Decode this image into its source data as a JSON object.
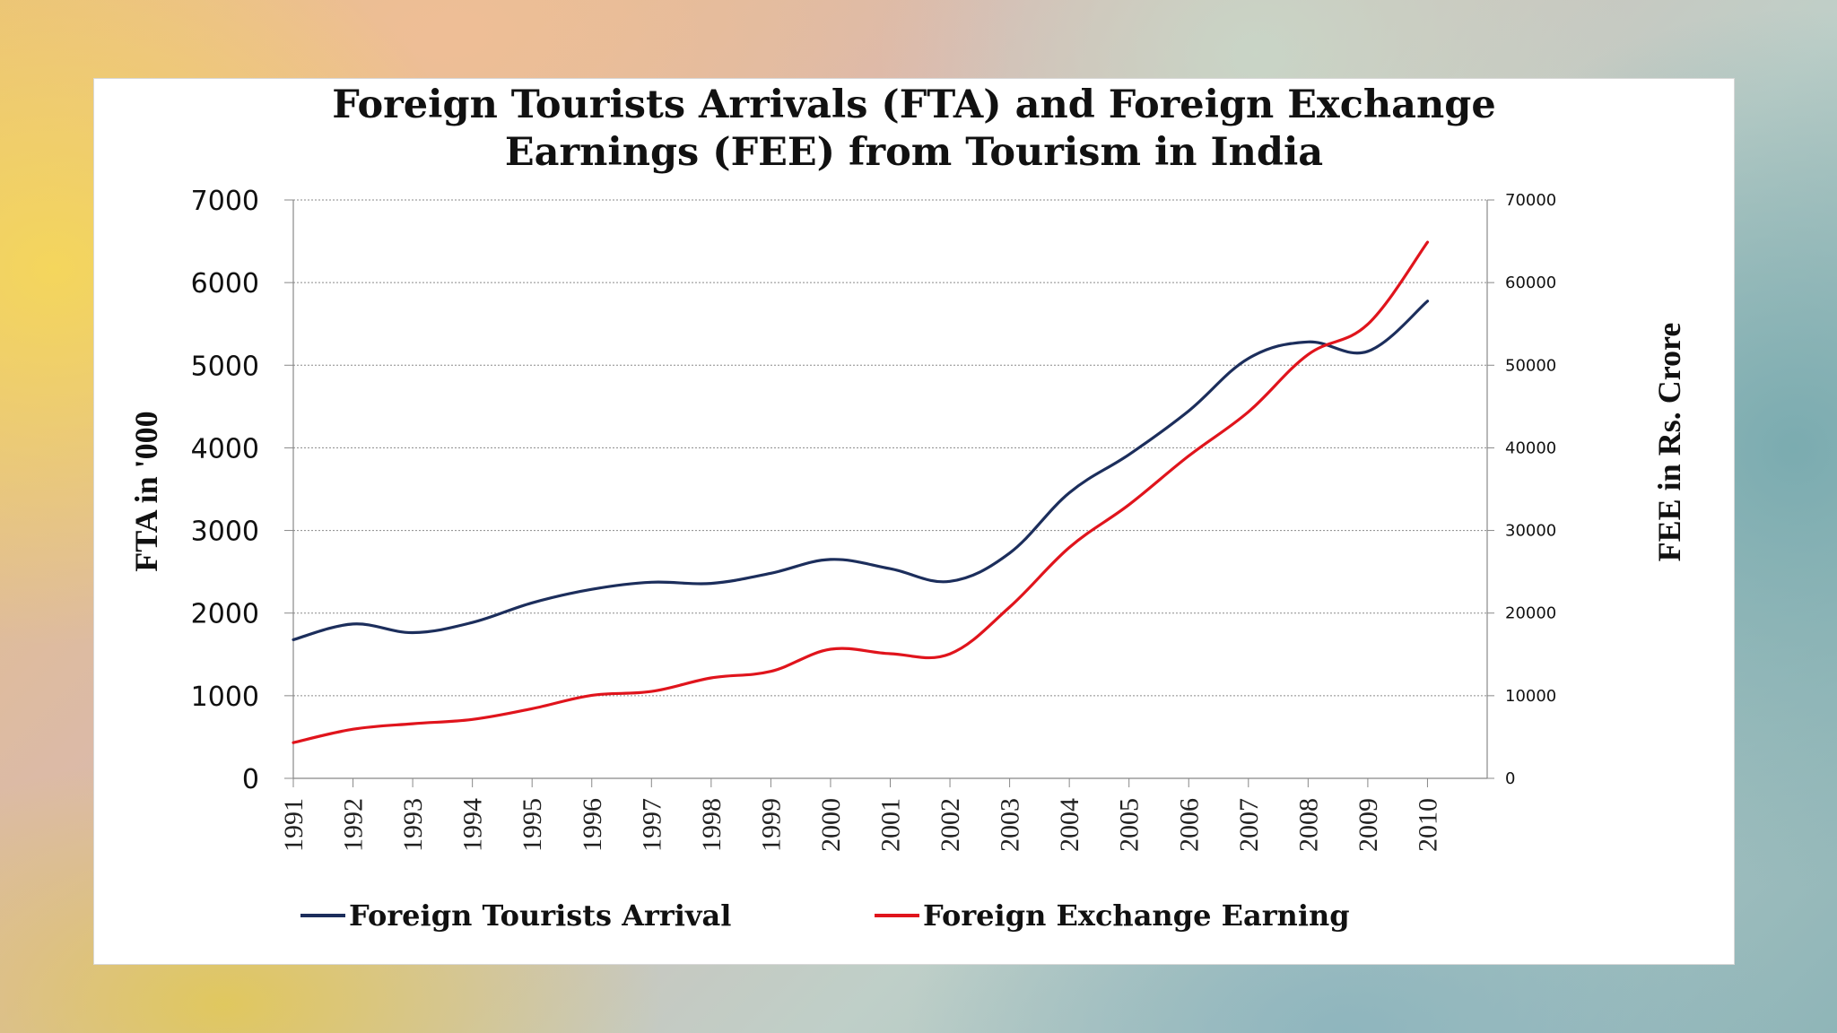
{
  "chart_data": {
    "type": "line",
    "title_line1": "Foreign Tourists Arrivals (FTA) and Foreign Exchange",
    "title_line2": "Earnings (FEE) from Tourism in India",
    "ylabel_left": "FTA in '000",
    "ylabel_right": "FEE in Rs. Crore",
    "ylim_left": [
      0,
      7000
    ],
    "ylim_right": [
      0,
      70000
    ],
    "yticks_left": [
      "0",
      "1000",
      "2000",
      "3000",
      "4000",
      "5000",
      "6000",
      "7000"
    ],
    "yticks_right": [
      "0",
      "10000",
      "20000",
      "30000",
      "40000",
      "50000",
      "60000",
      "70000"
    ],
    "grid": true,
    "legend_position": "bottom",
    "categories": [
      "1991",
      "1992",
      "1993",
      "1994",
      "1995",
      "1996",
      "1997",
      "1998",
      "1999",
      "2000",
      "2001",
      "2002",
      "2003",
      "2004",
      "2005",
      "2006",
      "2007",
      "2008",
      "2009",
      "2010"
    ],
    "series": [
      {
        "name": "Foreign Tourists Arrival",
        "axis": "left",
        "color": "#1c2e5c",
        "values": [
          1678,
          1868,
          1764,
          1886,
          2124,
          2288,
          2374,
          2359,
          2482,
          2649,
          2537,
          2384,
          2726,
          3457,
          3919,
          4447,
          5082,
          5282,
          5168,
          5776
        ]
      },
      {
        "name": "Foreign Exchange Earning",
        "axis": "right",
        "color": "#e0141c",
        "values": [
          4318,
          5951,
          6611,
          7129,
          8430,
          10046,
          10511,
          12150,
          12951,
          15626,
          15083,
          15064,
          20729,
          27944,
          33123,
          39025,
          44360,
          51294,
          54960,
          64889
        ]
      }
    ]
  }
}
